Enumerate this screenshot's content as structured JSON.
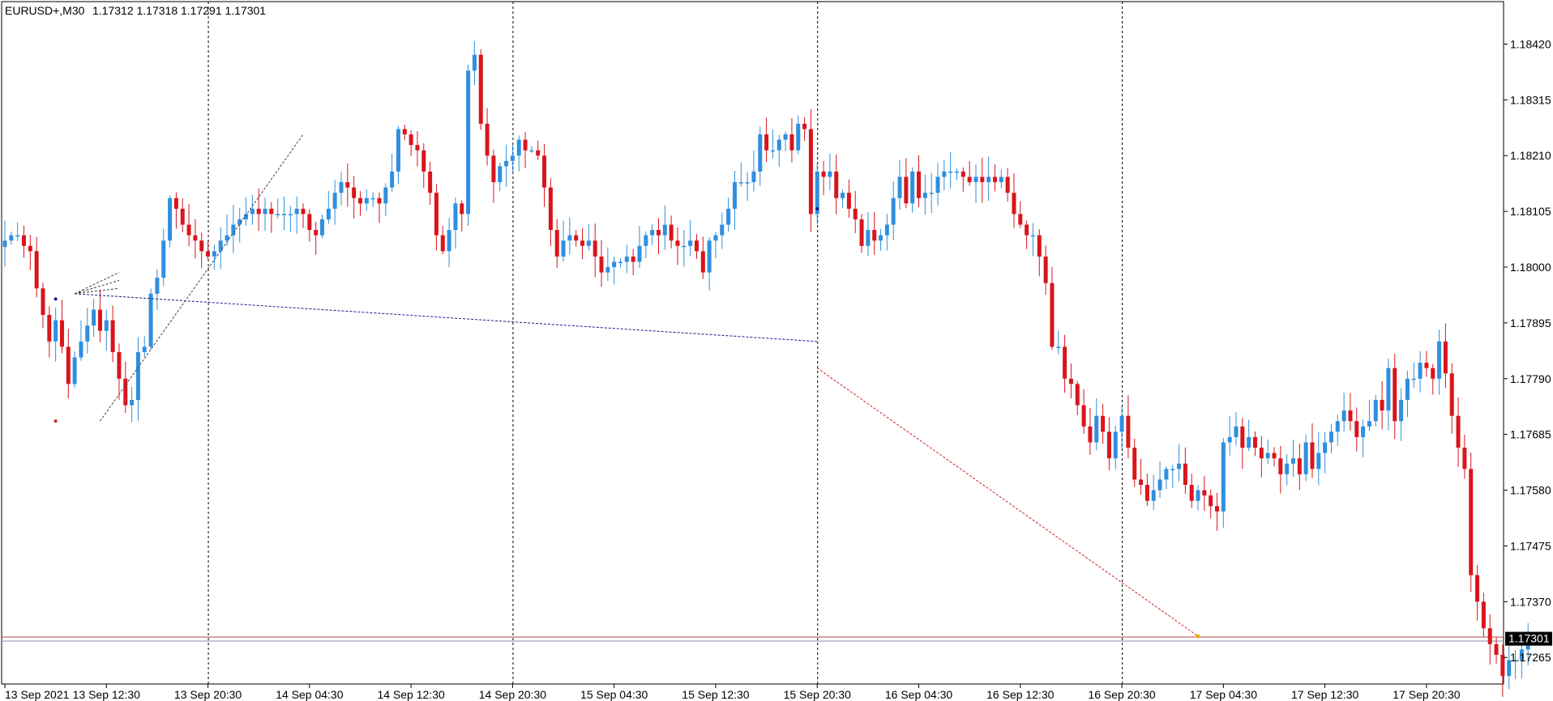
{
  "header": {
    "symbol": "EURUSD+,M30",
    "ohlc": "1.17312 1.17318 1.17291 1.17301"
  },
  "current_price": {
    "label": "1.17301",
    "value": 1.17301
  },
  "colors": {
    "bull": "#2f8fe0",
    "bear": "#d9151c",
    "grid": "#000000",
    "bid_line": "#b04545",
    "ask_line": "#8a8aa8",
    "blue_line": "#1a1a90",
    "red_line": "#cc2222",
    "dark_line": "#444444",
    "price_label_bg": "#000000"
  },
  "chart_data": {
    "type": "candlestick",
    "symbol": "EURUSD+",
    "timeframe": "M30",
    "y_axis": {
      "ticks": [
        "1.18420",
        "1.18315",
        "1.18210",
        "1.18105",
        "1.18000",
        "1.17895",
        "1.17790",
        "1.17685",
        "1.17580",
        "1.17475",
        "1.17370",
        "1.17265"
      ],
      "range": [
        1.17215,
        1.185
      ]
    },
    "x_axis": {
      "ticks": [
        "13 Sep 2021",
        "13 Sep 12:30",
        "13 Sep 20:30",
        "14 Sep 04:30",
        "14 Sep 12:30",
        "14 Sep 20:30",
        "15 Sep 04:30",
        "15 Sep 12:30",
        "15 Sep 20:30",
        "16 Sep 04:30",
        "16 Sep 12:30",
        "16 Sep 20:30",
        "17 Sep 04:30",
        "17 Sep 12:30",
        "17 Sep 20:30"
      ],
      "bars_per_tick": 16
    },
    "day_separators": [
      "13 Sep 20:30",
      "14 Sep 20:30",
      "15 Sep 20:30",
      "16 Sep 20:30"
    ],
    "closes": [
      1.1805,
      1.1806,
      1.1806,
      1.1804,
      1.1803,
      1.1796,
      1.1791,
      1.1786,
      1.179,
      1.1785,
      1.1778,
      1.1783,
      1.1786,
      1.1789,
      1.1792,
      1.1788,
      1.179,
      1.1784,
      1.1779,
      1.1774,
      1.1775,
      1.1784,
      1.1785,
      1.1795,
      1.1798,
      1.1805,
      1.1813,
      1.1811,
      1.1808,
      1.1806,
      1.1805,
      1.1803,
      1.1802,
      1.1803,
      1.1805,
      1.1806,
      1.1808,
      1.1809,
      1.181,
      1.1811,
      1.181,
      1.1811,
      1.181,
      1.181,
      1.181,
      1.181,
      1.1811,
      1.181,
      1.1807,
      1.1806,
      1.1809,
      1.1811,
      1.1814,
      1.1816,
      1.1815,
      1.1813,
      1.1812,
      1.1813,
      1.1813,
      1.1812,
      1.1815,
      1.1818,
      1.1826,
      1.1825,
      1.1823,
      1.1822,
      1.1818,
      1.1814,
      1.1806,
      1.1803,
      1.1807,
      1.1812,
      1.181,
      1.1837,
      1.184,
      1.1827,
      1.1821,
      1.1816,
      1.1819,
      1.182,
      1.1821,
      1.1824,
      1.1822,
      1.1822,
      1.1821,
      1.1815,
      1.1807,
      1.1802,
      1.1805,
      1.1806,
      1.1805,
      1.1804,
      1.1805,
      1.1802,
      1.1799,
      1.18,
      1.1801,
      1.1801,
      1.1802,
      1.1801,
      1.1804,
      1.1806,
      1.1807,
      1.1806,
      1.1808,
      1.1805,
      1.1804,
      1.1804,
      1.1805,
      1.1803,
      1.1799,
      1.1805,
      1.1806,
      1.1808,
      1.1811,
      1.1816,
      1.1816,
      1.1816,
      1.1818,
      1.1825,
      1.1822,
      1.1822,
      1.1824,
      1.1825,
      1.1822,
      1.1827,
      1.1826,
      1.181,
      1.1818,
      1.1817,
      1.1818,
      1.1813,
      1.1814,
      1.1811,
      1.1809,
      1.1804,
      1.1807,
      1.1805,
      1.1806,
      1.1808,
      1.1813,
      1.1817,
      1.1812,
      1.1818,
      1.1813,
      1.1814,
      1.1814,
      1.1817,
      1.1818,
      1.1818,
      1.1818,
      1.1817,
      1.1816,
      1.1817,
      1.1816,
      1.1817,
      1.1816,
      1.1817,
      1.1814,
      1.181,
      1.1808,
      1.1806,
      1.1806,
      1.1802,
      1.1797,
      1.1785,
      1.1785,
      1.1779,
      1.1778,
      1.1774,
      1.177,
      1.1767,
      1.1772,
      1.1769,
      1.1764,
      1.1769,
      1.1772,
      1.1766,
      1.176,
      1.1759,
      1.1756,
      1.1758,
      1.176,
      1.1762,
      1.1762,
      1.1763,
      1.1759,
      1.1756,
      1.1758,
      1.1757,
      1.1755,
      1.1754,
      1.1767,
      1.1768,
      1.177,
      1.1766,
      1.1768,
      1.1766,
      1.1764,
      1.1765,
      1.1764,
      1.1761,
      1.1763,
      1.1764,
      1.1761,
      1.1767,
      1.1762,
      1.1765,
      1.1767,
      1.1769,
      1.1771,
      1.1773,
      1.1771,
      1.1768,
      1.177,
      1.1771,
      1.1775,
      1.1773,
      1.1781,
      1.1771,
      1.1775,
      1.1779,
      1.1779,
      1.1782,
      1.1781,
      1.1779,
      1.1786,
      1.178,
      1.1772,
      1.1766,
      1.1762,
      1.1742,
      1.1737,
      1.1732,
      1.1729,
      1.1727,
      1.1723,
      1.1726,
      1.1726,
      1.1728,
      1.173
    ]
  }
}
